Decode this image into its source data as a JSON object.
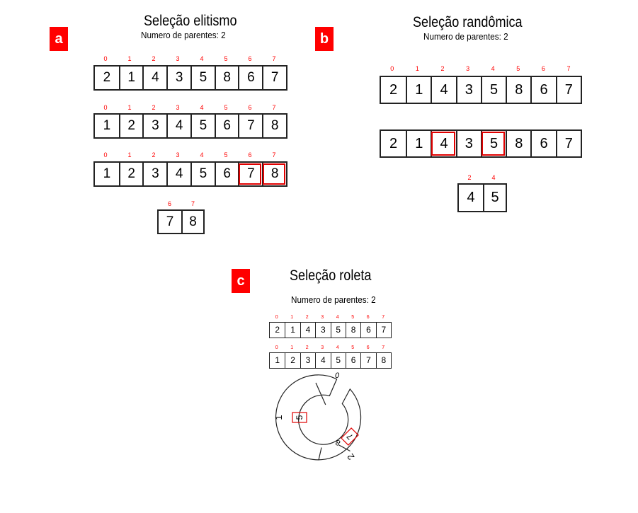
{
  "colors": {
    "accent": "#ff0000",
    "stroke": "#222222"
  },
  "panel_a": {
    "badge": "a",
    "title": "Seleção elitismo",
    "subtitle": "Numero de parentes: 2",
    "indices": [
      "0",
      "1",
      "2",
      "3",
      "4",
      "5",
      "6",
      "7"
    ],
    "arrays": [
      [
        "2",
        "1",
        "4",
        "3",
        "5",
        "8",
        "6",
        "7"
      ],
      [
        "1",
        "2",
        "3",
        "4",
        "5",
        "6",
        "7",
        "8"
      ],
      [
        "1",
        "2",
        "3",
        "4",
        "5",
        "6",
        "7",
        "8"
      ]
    ],
    "highlighted": [
      6,
      7
    ],
    "result_indices": [
      "6",
      "7"
    ],
    "result": [
      "7",
      "8"
    ]
  },
  "panel_b": {
    "badge": "b",
    "title": "Seleção  randômica",
    "subtitle": "Numero de parentes: 2",
    "indices": [
      "0",
      "1",
      "2",
      "3",
      "4",
      "5",
      "6",
      "7"
    ],
    "arrays": [
      [
        "2",
        "1",
        "4",
        "3",
        "5",
        "8",
        "6",
        "7"
      ],
      [
        "2",
        "1",
        "4",
        "3",
        "5",
        "8",
        "6",
        "7"
      ]
    ],
    "highlighted": [
      2,
      4
    ],
    "result_indices": [
      "2",
      "4"
    ],
    "result": [
      "4",
      "5"
    ]
  },
  "panel_c": {
    "badge": "c",
    "title": "Seleção roleta",
    "subtitle": "Numero de parentes: 2",
    "indices": [
      "0",
      "1",
      "2",
      "3",
      "4",
      "5",
      "6",
      "7"
    ],
    "arrays": [
      [
        "2",
        "1",
        "4",
        "3",
        "5",
        "8",
        "6",
        "7"
      ],
      [
        "1",
        "2",
        "3",
        "4",
        "5",
        "6",
        "7",
        "8"
      ]
    ],
    "wheel_labels": {
      "top": "0",
      "left": "1",
      "bottom": "2"
    },
    "wheel_values": {
      "selected_1": "5",
      "selected_2": "7",
      "other": "8"
    }
  }
}
